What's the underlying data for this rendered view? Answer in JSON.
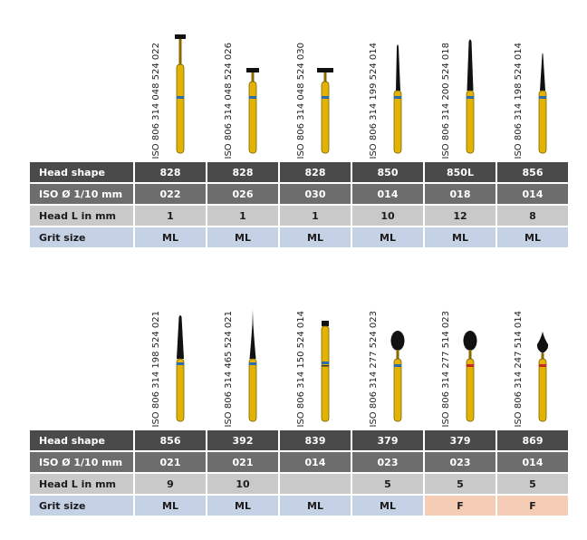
{
  "colors": {
    "header_dark": "#4a4a4a",
    "header_mid": "#6d6d6d",
    "row_light": "#c9c9c9",
    "row_grit": "#c5d1e5",
    "grit_fine": "#f5cdb6",
    "shank_gold": "#e2b400",
    "head_black": "#111111",
    "ring_blue": "#2b6cb0",
    "ring_red": "#c62828"
  },
  "row_labels": [
    "Head shape",
    "ISO Ø 1/10 mm",
    "Head L in mm",
    "Grit size"
  ],
  "tables": [
    {
      "columns": [
        {
          "iso": "ISO 806 314 048 524 022",
          "head_shape": "828",
          "iso_diameter": "022",
          "head_length": "1",
          "grit": "ML",
          "shape_icon": "inverted-cone-bur-icon",
          "ring": "blue"
        },
        {
          "iso": "ISO 806 314 048 524 026",
          "head_shape": "828",
          "iso_diameter": "026",
          "head_length": "1",
          "grit": "ML",
          "shape_icon": "inverted-cone-bur-icon",
          "ring": "blue"
        },
        {
          "iso": "ISO 806 314 048 524 030",
          "head_shape": "828",
          "iso_diameter": "030",
          "head_length": "1",
          "grit": "ML",
          "shape_icon": "inverted-cone-bur-icon",
          "ring": "blue"
        },
        {
          "iso": "ISO 806 314 199 524 014",
          "head_shape": "850",
          "iso_diameter": "014",
          "head_length": "10",
          "grit": "ML",
          "shape_icon": "round-end-taper-bur-icon",
          "ring": "blue"
        },
        {
          "iso": "ISO 806 314 200 524 018",
          "head_shape": "850L",
          "iso_diameter": "018",
          "head_length": "12",
          "grit": "ML",
          "shape_icon": "long-taper-bur-icon",
          "ring": "blue"
        },
        {
          "iso": "ISO 806 314 198 524 014",
          "head_shape": "856",
          "iso_diameter": "014",
          "head_length": "8",
          "grit": "ML",
          "shape_icon": "taper-bur-icon",
          "ring": "blue"
        }
      ]
    },
    {
      "columns": [
        {
          "iso": "ISO 806 314 198 524 021",
          "head_shape": "856",
          "iso_diameter": "021",
          "head_length": "9",
          "grit": "ML",
          "shape_icon": "taper-bur-icon",
          "ring": "blue"
        },
        {
          "iso": "ISO 806 314 465 524 021",
          "head_shape": "392",
          "iso_diameter": "021",
          "head_length": "10",
          "grit": "ML",
          "shape_icon": "needle-bur-icon",
          "ring": "blue"
        },
        {
          "iso": "ISO 806 314 150 524 014",
          "head_shape": "839",
          "iso_diameter": "014",
          "head_length": "",
          "grit": "ML",
          "shape_icon": "cylinder-bur-icon",
          "ring": "blue"
        },
        {
          "iso": "ISO 806 314 277 524 023",
          "head_shape": "379",
          "iso_diameter": "023",
          "head_length": "5",
          "grit": "ML",
          "shape_icon": "football-bur-icon",
          "ring": "blue"
        },
        {
          "iso": "ISO 806 314 277 514 023",
          "head_shape": "379",
          "iso_diameter": "023",
          "head_length": "5",
          "grit": "F",
          "shape_icon": "football-bur-icon",
          "ring": "red"
        },
        {
          "iso": "ISO 806 314 247 514 014",
          "head_shape": "869",
          "iso_diameter": "014",
          "head_length": "5",
          "grit": "F",
          "shape_icon": "flame-bur-icon",
          "ring": "red"
        }
      ]
    }
  ]
}
